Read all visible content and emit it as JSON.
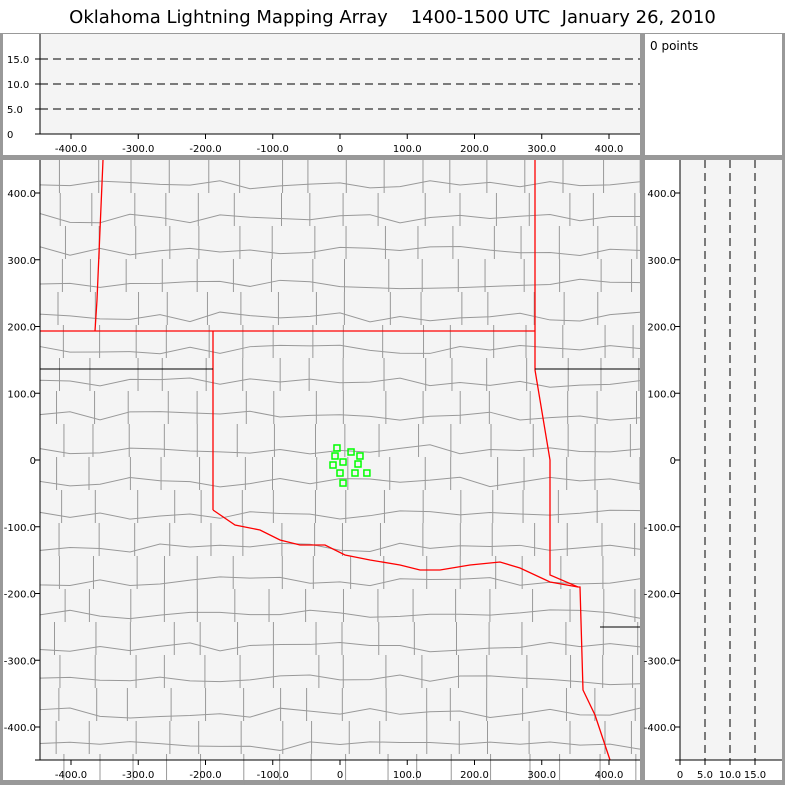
{
  "title": "Oklahoma Lightning Mapping Array    1400-1500 UTC  January 26, 2010",
  "points_label": "0 points",
  "colors": {
    "state_border": "#ff0000",
    "county": "#999999",
    "source": "#00ff00",
    "panel_bg": "#f4f4f4"
  },
  "chart_data": [
    {
      "type": "line",
      "panel": "altitude-vs-east",
      "xlim": [
        -450,
        450
      ],
      "ylim": [
        0,
        19
      ],
      "xticks": [
        "-400.0",
        "-300.0",
        "-200.0",
        "-100.0",
        "0",
        "100.0",
        "200.0",
        "300.0",
        "400.0"
      ],
      "yticks": [
        "0",
        "5.0",
        "10.0",
        "15.0"
      ],
      "grid": "dashed horizontal at 5, 10, 15"
    },
    {
      "type": "scatter",
      "panel": "plan-view",
      "xlim": [
        -450,
        450
      ],
      "ylim": [
        -450,
        450
      ],
      "xticks": [
        "-400.0",
        "-300.0",
        "-200.0",
        "-100.0",
        "0",
        "100.0",
        "200.0",
        "300.0",
        "400.0"
      ],
      "yticks": [
        "-400.0",
        "-300.0",
        "-200.0",
        "-100.0",
        "0",
        "100.0",
        "200.0",
        "300.0",
        "400.0"
      ],
      "x": [
        -4.5,
        -7.4,
        16.4,
        29.7,
        -10.4,
        4.5,
        26.8,
        22.3,
        0,
        40,
        4.5
      ],
      "y": [
        18,
        6,
        12,
        6,
        -7.5,
        -3,
        -6,
        -19.5,
        -19.5,
        -19.5,
        -34.5
      ],
      "marker": "hollow square"
    },
    {
      "type": "line",
      "panel": "north-vs-altitude",
      "xlim": [
        0,
        19
      ],
      "ylim": [
        -450,
        450
      ],
      "xticks": [
        "0",
        "5.0",
        "10.0",
        "15.0"
      ],
      "yticks": [
        "-400.0",
        "-300.0",
        "-200.0",
        "-100.0",
        "0",
        "100.0",
        "200.0",
        "300.0",
        "400.0"
      ],
      "grid": "dashed vertical at 5, 10, 15"
    }
  ]
}
